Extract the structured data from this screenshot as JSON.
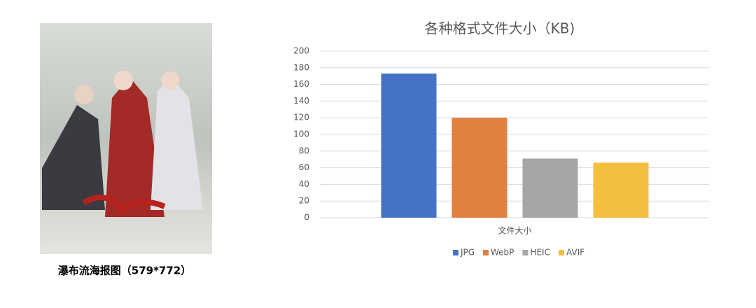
{
  "poster": {
    "caption": "瀑布流海报图（579*772）"
  },
  "chart_data": {
    "type": "bar",
    "title": "各种格式文件大小（KB)",
    "categories": [
      "文件大小"
    ],
    "series": [
      {
        "name": "JPG",
        "color": "#4472c4",
        "values": [
          173
        ]
      },
      {
        "name": "WebP",
        "color": "#e0813f",
        "values": [
          120
        ]
      },
      {
        "name": "HEIC",
        "color": "#a5a5a5",
        "values": [
          71
        ]
      },
      {
        "name": "AVIF",
        "color": "#f4bf3f",
        "values": [
          66
        ]
      }
    ],
    "ylim": [
      0,
      200
    ],
    "yticks": [
      0,
      20,
      40,
      60,
      80,
      100,
      120,
      140,
      160,
      180,
      200
    ],
    "grid": true,
    "legend": "bottom"
  }
}
